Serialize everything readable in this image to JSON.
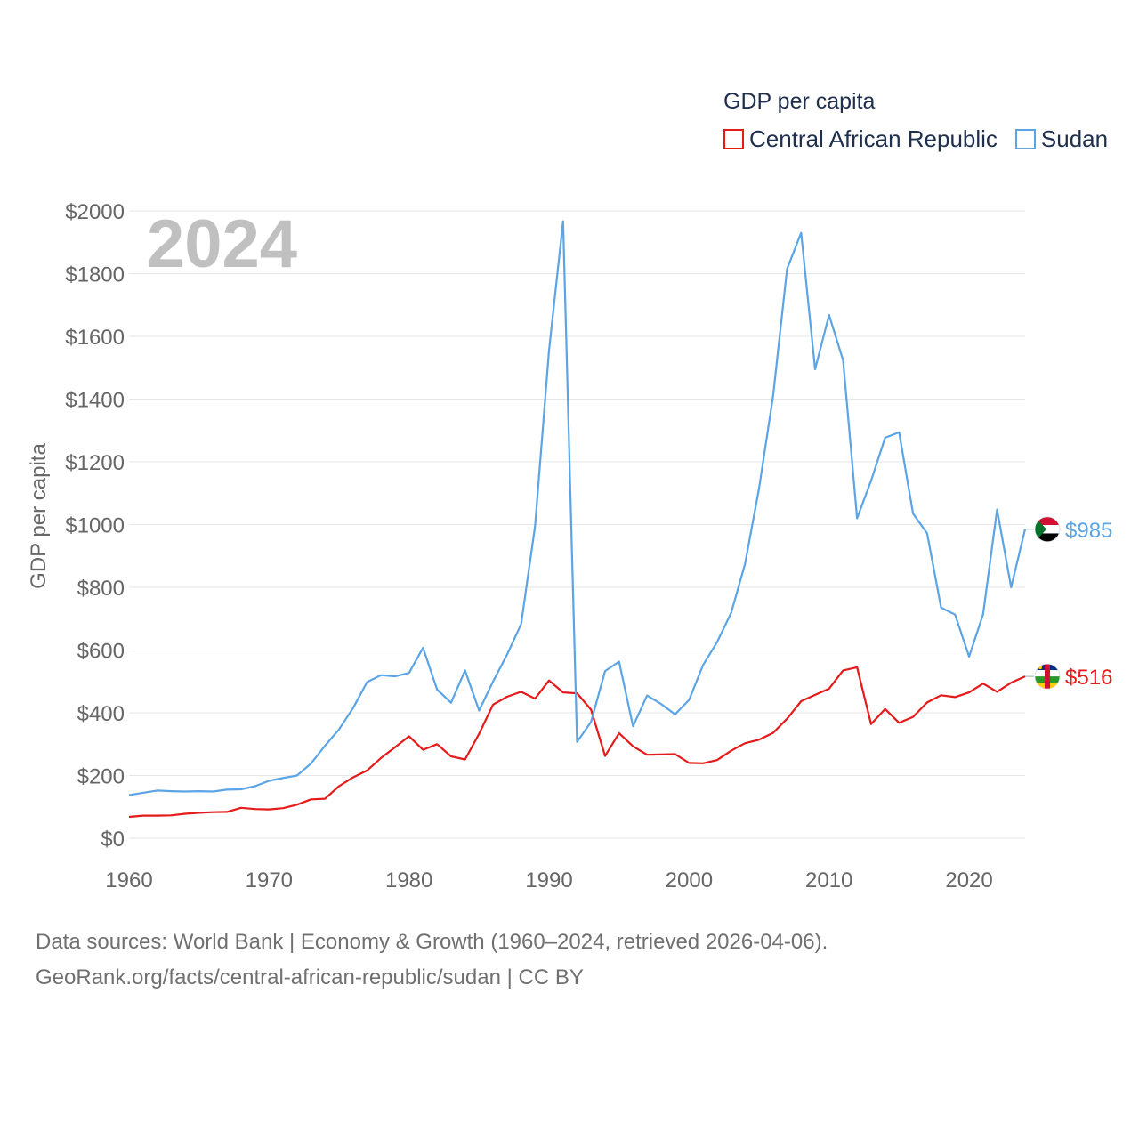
{
  "chart_data": {
    "type": "line",
    "ylabel": "GDP per capita",
    "legend_title": "GDP per capita",
    "year_label": "2024",
    "ylim": [
      0,
      2000
    ],
    "xlim": [
      1960,
      2024
    ],
    "y_ticks": [
      {
        "value": 0,
        "label": "$0"
      },
      {
        "value": 200,
        "label": "$200"
      },
      {
        "value": 400,
        "label": "$400"
      },
      {
        "value": 600,
        "label": "$600"
      },
      {
        "value": 800,
        "label": "$800"
      },
      {
        "value": 1000,
        "label": "$1000"
      },
      {
        "value": 1200,
        "label": "$1200"
      },
      {
        "value": 1400,
        "label": "$1400"
      },
      {
        "value": 1600,
        "label": "$1600"
      },
      {
        "value": 1800,
        "label": "$1800"
      },
      {
        "value": 2000,
        "label": "$2000"
      }
    ],
    "x_ticks": [
      {
        "value": 1960,
        "label": "1960"
      },
      {
        "value": 1970,
        "label": "1970"
      },
      {
        "value": 1980,
        "label": "1980"
      },
      {
        "value": 1990,
        "label": "1990"
      },
      {
        "value": 2000,
        "label": "2000"
      },
      {
        "value": 2010,
        "label": "2010"
      },
      {
        "value": 2020,
        "label": "2020"
      }
    ],
    "x_start": 1960,
    "series": [
      {
        "name": "Central African Republic",
        "key": "car",
        "color": "#e51a1a",
        "end_label": "$516",
        "values": [
          68,
          72,
          72,
          73,
          78,
          81,
          83,
          84,
          97,
          93,
          92,
          96,
          107,
          124,
          126,
          166,
          194,
          216,
          256,
          290,
          325,
          282,
          300,
          261,
          251,
          333,
          426,
          451,
          467,
          445,
          503,
          465,
          462,
          410,
          262,
          335,
          293,
          266,
          267,
          268,
          240,
          239,
          249,
          279,
          303,
          314,
          336,
          381,
          437,
          457,
          477,
          535,
          545,
          364,
          412,
          368,
          387,
          433,
          456,
          450,
          465,
          493,
          467,
          496,
          516
        ]
      },
      {
        "name": "Sudan",
        "key": "sdn",
        "color": "#5ba4e5",
        "end_label": "$985",
        "values": [
          138,
          145,
          152,
          150,
          149,
          150,
          149,
          155,
          156,
          166,
          183,
          192,
          200,
          238,
          295,
          347,
          415,
          498,
          520,
          516,
          527,
          607,
          474,
          432,
          535,
          407,
          500,
          585,
          682,
          995,
          1555,
          1967,
          307,
          371,
          533,
          563,
          357,
          455,
          428,
          395,
          441,
          552,
          625,
          718,
          875,
          1115,
          1410,
          1815,
          1930,
          1495,
          1668,
          1523,
          1020,
          1140,
          1277,
          1294,
          1035,
          972,
          735,
          713,
          579,
          714,
          1048,
          800,
          985
        ]
      }
    ]
  },
  "footer": {
    "line1": "Data sources: World Bank | Economy & Growth (1960–2024, retrieved 2026-04-06).",
    "line2": "GeoRank.org/facts/central-african-republic/sudan | CC BY"
  },
  "colors": {
    "grid": "#e6e6e6",
    "tick_text": "#666666",
    "year_text": "#c0c0c0"
  }
}
